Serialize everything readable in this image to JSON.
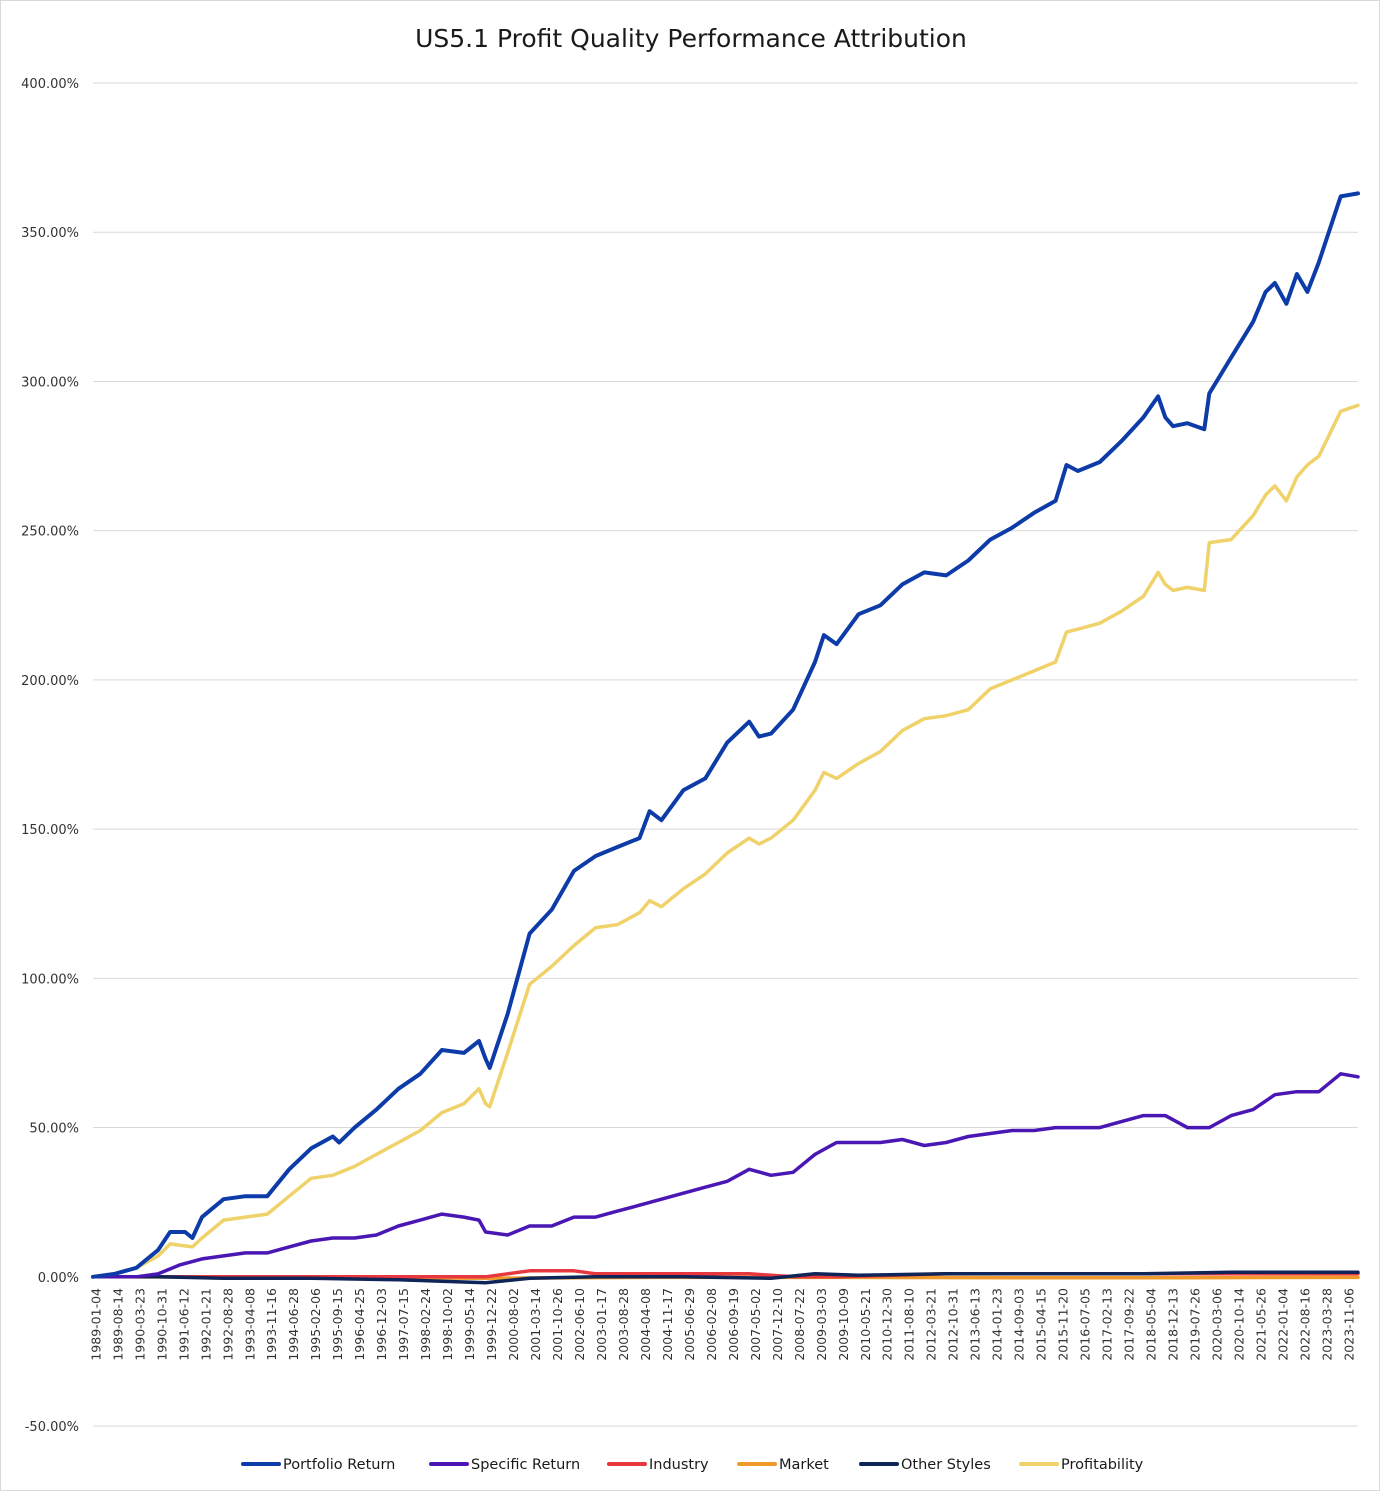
{
  "chart_data": {
    "type": "line",
    "title": "US5.1 Profit Quality Performance Attribution",
    "xlabel": "",
    "ylabel": "",
    "ylim": [
      -0.5,
      4.0
    ],
    "y_ticks": [
      -0.5,
      0,
      0.5,
      1.0,
      1.5,
      2.0,
      2.5,
      3.0,
      3.5,
      4.0
    ],
    "y_tick_labels": [
      "-50.00%",
      "0.00%",
      "50.00%",
      "100.00%",
      "150.00%",
      "200.00%",
      "250.00%",
      "300.00%",
      "350.00%",
      "400.00%"
    ],
    "y_format": "percent",
    "grid": "horizontal",
    "legend_position": "bottom",
    "x_range": [
      "1989-01-04",
      "2024-04-30"
    ],
    "x_tick_labels": [
      "1989-01-04",
      "1989-08-14",
      "1990-03-23",
      "1990-10-31",
      "1991-06-12",
      "1992-01-21",
      "1992-08-28",
      "1993-04-08",
      "1993-11-16",
      "1994-06-28",
      "1995-02-06",
      "1995-09-15",
      "1996-04-25",
      "1996-12-03",
      "1997-07-15",
      "1998-02-24",
      "1998-10-02",
      "1999-05-14",
      "1999-12-22",
      "2000-08-02",
      "2001-03-14",
      "2001-10-26",
      "2002-06-10",
      "2003-01-17",
      "2003-08-28",
      "2004-04-08",
      "2004-11-17",
      "2005-06-29",
      "2006-02-08",
      "2006-09-19",
      "2007-05-02",
      "2007-12-10",
      "2008-07-22",
      "2009-03-03",
      "2009-10-09",
      "2010-05-21",
      "2010-12-30",
      "2011-08-10",
      "2012-03-21",
      "2012-10-31",
      "2013-06-13",
      "2014-01-23",
      "2014-09-03",
      "2015-04-15",
      "2015-11-20",
      "2016-07-05",
      "2017-02-13",
      "2017-09-22",
      "2018-05-04",
      "2018-12-13",
      "2019-07-26",
      "2020-03-06",
      "2020-10-14",
      "2021-05-26",
      "2022-01-04",
      "2022-08-16",
      "2023-03-28",
      "2023-11-06"
    ],
    "series": [
      {
        "name": "Portfolio Return",
        "color": "#0d3ca8",
        "points": [
          [
            "1989-01-04",
            0
          ],
          [
            "1989-08-14",
            0.01
          ],
          [
            "1990-03-23",
            0.03
          ],
          [
            "1990-10-31",
            0.09
          ],
          [
            "1991-03-01",
            0.15
          ],
          [
            "1991-08-01",
            0.15
          ],
          [
            "1991-10-15",
            0.13
          ],
          [
            "1992-01-21",
            0.2
          ],
          [
            "1992-08-28",
            0.26
          ],
          [
            "1993-04-08",
            0.27
          ],
          [
            "1993-11-16",
            0.27
          ],
          [
            "1994-06-28",
            0.36
          ],
          [
            "1995-02-06",
            0.43
          ],
          [
            "1995-09-15",
            0.47
          ],
          [
            "1995-11-20",
            0.45
          ],
          [
            "1996-04-25",
            0.5
          ],
          [
            "1996-12-03",
            0.56
          ],
          [
            "1997-07-15",
            0.63
          ],
          [
            "1998-02-24",
            0.68
          ],
          [
            "1998-10-02",
            0.76
          ],
          [
            "1999-05-14",
            0.75
          ],
          [
            "1999-10-15",
            0.79
          ],
          [
            "1999-12-22",
            0.73
          ],
          [
            "2000-02-01",
            0.7
          ],
          [
            "2000-08-02",
            0.88
          ],
          [
            "2001-03-14",
            1.15
          ],
          [
            "2001-10-26",
            1.23
          ],
          [
            "2002-06-10",
            1.36
          ],
          [
            "2003-01-17",
            1.41
          ],
          [
            "2003-08-28",
            1.44
          ],
          [
            "2004-04-08",
            1.47
          ],
          [
            "2004-07-20",
            1.56
          ],
          [
            "2004-11-17",
            1.53
          ],
          [
            "2005-06-29",
            1.63
          ],
          [
            "2006-02-08",
            1.67
          ],
          [
            "2006-09-19",
            1.79
          ],
          [
            "2007-05-02",
            1.86
          ],
          [
            "2007-08-10",
            1.81
          ],
          [
            "2007-12-10",
            1.82
          ],
          [
            "2008-07-22",
            1.9
          ],
          [
            "2009-03-03",
            2.06
          ],
          [
            "2009-06-01",
            2.15
          ],
          [
            "2009-10-09",
            2.12
          ],
          [
            "2010-05-21",
            2.22
          ],
          [
            "2010-12-30",
            2.25
          ],
          [
            "2011-08-10",
            2.32
          ],
          [
            "2012-03-21",
            2.36
          ],
          [
            "2012-10-31",
            2.35
          ],
          [
            "2013-06-13",
            2.4
          ],
          [
            "2014-01-23",
            2.47
          ],
          [
            "2014-09-03",
            2.51
          ],
          [
            "2015-04-15",
            2.56
          ],
          [
            "2015-11-20",
            2.6
          ],
          [
            "2016-03-10",
            2.72
          ],
          [
            "2016-07-05",
            2.7
          ],
          [
            "2017-02-13",
            2.73
          ],
          [
            "2017-09-22",
            2.8
          ],
          [
            "2018-05-04",
            2.88
          ],
          [
            "2018-10-01",
            2.95
          ],
          [
            "2018-12-13",
            2.88
          ],
          [
            "2019-03-01",
            2.85
          ],
          [
            "2019-07-26",
            2.86
          ],
          [
            "2020-01-15",
            2.84
          ],
          [
            "2020-03-06",
            2.96
          ],
          [
            "2020-10-14",
            3.08
          ],
          [
            "2021-05-26",
            3.2
          ],
          [
            "2021-10-01",
            3.3
          ],
          [
            "2022-01-04",
            3.33
          ],
          [
            "2022-05-01",
            3.26
          ],
          [
            "2022-08-16",
            3.36
          ],
          [
            "2022-12-01",
            3.3
          ],
          [
            "2023-03-28",
            3.4
          ],
          [
            "2023-11-06",
            3.62
          ],
          [
            "2024-04-30",
            3.63
          ]
        ]
      },
      {
        "name": "Specific Return",
        "color": "#4a17b5",
        "points": [
          [
            "1989-01-04",
            0
          ],
          [
            "1990-03-23",
            0
          ],
          [
            "1990-10-31",
            0.01
          ],
          [
            "1991-06-12",
            0.04
          ],
          [
            "1992-01-21",
            0.06
          ],
          [
            "1992-08-28",
            0.07
          ],
          [
            "1993-04-08",
            0.08
          ],
          [
            "1993-11-16",
            0.08
          ],
          [
            "1994-06-28",
            0.1
          ],
          [
            "1995-02-06",
            0.12
          ],
          [
            "1995-09-15",
            0.13
          ],
          [
            "1996-04-25",
            0.13
          ],
          [
            "1996-12-03",
            0.14
          ],
          [
            "1997-07-15",
            0.17
          ],
          [
            "1998-02-24",
            0.19
          ],
          [
            "1998-10-02",
            0.21
          ],
          [
            "1999-05-14",
            0.2
          ],
          [
            "1999-10-15",
            0.19
          ],
          [
            "1999-12-22",
            0.15
          ],
          [
            "2000-08-02",
            0.14
          ],
          [
            "2001-03-14",
            0.17
          ],
          [
            "2001-10-26",
            0.17
          ],
          [
            "2002-06-10",
            0.2
          ],
          [
            "2003-01-17",
            0.2
          ],
          [
            "2003-08-28",
            0.22
          ],
          [
            "2004-04-08",
            0.24
          ],
          [
            "2004-11-17",
            0.26
          ],
          [
            "2005-06-29",
            0.28
          ],
          [
            "2006-02-08",
            0.3
          ],
          [
            "2006-09-19",
            0.32
          ],
          [
            "2007-05-02",
            0.36
          ],
          [
            "2007-12-10",
            0.34
          ],
          [
            "2008-07-22",
            0.35
          ],
          [
            "2009-03-03",
            0.41
          ],
          [
            "2009-10-09",
            0.45
          ],
          [
            "2010-05-21",
            0.45
          ],
          [
            "2010-12-30",
            0.45
          ],
          [
            "2011-08-10",
            0.46
          ],
          [
            "2012-03-21",
            0.44
          ],
          [
            "2012-10-31",
            0.45
          ],
          [
            "2013-06-13",
            0.47
          ],
          [
            "2014-01-23",
            0.48
          ],
          [
            "2014-09-03",
            0.49
          ],
          [
            "2015-04-15",
            0.49
          ],
          [
            "2015-11-20",
            0.5
          ],
          [
            "2016-07-05",
            0.5
          ],
          [
            "2017-02-13",
            0.5
          ],
          [
            "2017-09-22",
            0.52
          ],
          [
            "2018-05-04",
            0.54
          ],
          [
            "2018-12-13",
            0.54
          ],
          [
            "2019-07-26",
            0.5
          ],
          [
            "2020-03-06",
            0.5
          ],
          [
            "2020-10-14",
            0.54
          ],
          [
            "2021-05-26",
            0.56
          ],
          [
            "2022-01-04",
            0.61
          ],
          [
            "2022-08-16",
            0.62
          ],
          [
            "2023-03-28",
            0.62
          ],
          [
            "2023-11-06",
            0.68
          ],
          [
            "2024-04-30",
            0.67
          ]
        ]
      },
      {
        "name": "Industry",
        "color": "#e8383f",
        "points": [
          [
            "1989-01-04",
            0
          ],
          [
            "1992-08-28",
            0
          ],
          [
            "1996-04-25",
            0
          ],
          [
            "1998-10-02",
            0
          ],
          [
            "1999-12-22",
            0
          ],
          [
            "2000-08-02",
            0.01
          ],
          [
            "2001-03-14",
            0.02
          ],
          [
            "2001-10-26",
            0.02
          ],
          [
            "2002-06-10",
            0.02
          ],
          [
            "2003-01-17",
            0.01
          ],
          [
            "2004-11-17",
            0.01
          ],
          [
            "2007-05-02",
            0.01
          ],
          [
            "2008-07-22",
            0
          ],
          [
            "2009-10-09",
            0
          ],
          [
            "2012-10-31",
            0.01
          ],
          [
            "2016-07-05",
            0.01
          ],
          [
            "2018-05-04",
            0.01
          ],
          [
            "2020-03-06",
            0.01
          ],
          [
            "2022-01-04",
            0.01
          ],
          [
            "2024-04-30",
            0.01
          ]
        ]
      },
      {
        "name": "Market",
        "color": "#f09a2b",
        "points": [
          [
            "1989-01-04",
            0
          ],
          [
            "1995-02-06",
            -0.002
          ],
          [
            "1999-12-22",
            -0.005
          ],
          [
            "2004-11-17",
            -0.002
          ],
          [
            "2009-10-09",
            -0.002
          ],
          [
            "2014-09-03",
            -0.003
          ],
          [
            "2019-07-26",
            -0.003
          ],
          [
            "2024-04-30",
            -0.002
          ]
        ]
      },
      {
        "name": "Other Styles",
        "color": "#0f2557",
        "points": [
          [
            "1989-01-04",
            0
          ],
          [
            "1990-10-31",
            0
          ],
          [
            "1992-08-28",
            -0.005
          ],
          [
            "1995-02-06",
            -0.005
          ],
          [
            "1997-07-15",
            -0.01
          ],
          [
            "1999-12-22",
            -0.02
          ],
          [
            "2001-03-14",
            -0.005
          ],
          [
            "2003-01-17",
            0
          ],
          [
            "2005-06-29",
            0
          ],
          [
            "2007-12-10",
            -0.005
          ],
          [
            "2009-03-03",
            0.01
          ],
          [
            "2010-05-21",
            0.005
          ],
          [
            "2012-10-31",
            0.01
          ],
          [
            "2015-11-20",
            0.01
          ],
          [
            "2018-05-04",
            0.01
          ],
          [
            "2020-10-14",
            0.015
          ],
          [
            "2022-08-16",
            0.015
          ],
          [
            "2024-04-30",
            0.015
          ]
        ]
      },
      {
        "name": "Profitability",
        "color": "#f0d26a",
        "points": [
          [
            "1989-01-04",
            0
          ],
          [
            "1989-08-14",
            0.01
          ],
          [
            "1990-03-23",
            0.03
          ],
          [
            "1990-10-31",
            0.07
          ],
          [
            "1991-03-01",
            0.11
          ],
          [
            "1991-10-15",
            0.1
          ],
          [
            "1992-01-21",
            0.13
          ],
          [
            "1992-08-28",
            0.19
          ],
          [
            "1993-04-08",
            0.2
          ],
          [
            "1993-11-16",
            0.21
          ],
          [
            "1994-06-28",
            0.27
          ],
          [
            "1995-02-06",
            0.33
          ],
          [
            "1995-09-15",
            0.34
          ],
          [
            "1996-04-25",
            0.37
          ],
          [
            "1996-12-03",
            0.41
          ],
          [
            "1997-07-15",
            0.45
          ],
          [
            "1998-02-24",
            0.49
          ],
          [
            "1998-10-02",
            0.55
          ],
          [
            "1999-05-14",
            0.58
          ],
          [
            "1999-10-15",
            0.63
          ],
          [
            "1999-12-22",
            0.58
          ],
          [
            "2000-02-01",
            0.57
          ],
          [
            "2000-08-02",
            0.75
          ],
          [
            "2001-03-14",
            0.98
          ],
          [
            "2001-10-26",
            1.04
          ],
          [
            "2002-06-10",
            1.11
          ],
          [
            "2003-01-17",
            1.17
          ],
          [
            "2003-08-28",
            1.18
          ],
          [
            "2004-04-08",
            1.22
          ],
          [
            "2004-07-20",
            1.26
          ],
          [
            "2004-11-17",
            1.24
          ],
          [
            "2005-06-29",
            1.3
          ],
          [
            "2006-02-08",
            1.35
          ],
          [
            "2006-09-19",
            1.42
          ],
          [
            "2007-05-02",
            1.47
          ],
          [
            "2007-08-10",
            1.45
          ],
          [
            "2007-12-10",
            1.47
          ],
          [
            "2008-07-22",
            1.53
          ],
          [
            "2009-03-03",
            1.63
          ],
          [
            "2009-06-01",
            1.69
          ],
          [
            "2009-10-09",
            1.67
          ],
          [
            "2010-05-21",
            1.72
          ],
          [
            "2010-12-30",
            1.76
          ],
          [
            "2011-08-10",
            1.83
          ],
          [
            "2012-03-21",
            1.87
          ],
          [
            "2012-10-31",
            1.88
          ],
          [
            "2013-06-13",
            1.9
          ],
          [
            "2014-01-23",
            1.97
          ],
          [
            "2014-09-03",
            2.0
          ],
          [
            "2015-04-15",
            2.03
          ],
          [
            "2015-11-20",
            2.06
          ],
          [
            "2016-03-10",
            2.16
          ],
          [
            "2016-07-05",
            2.17
          ],
          [
            "2017-02-13",
            2.19
          ],
          [
            "2017-09-22",
            2.23
          ],
          [
            "2018-05-04",
            2.28
          ],
          [
            "2018-10-01",
            2.36
          ],
          [
            "2018-12-13",
            2.32
          ],
          [
            "2019-03-01",
            2.3
          ],
          [
            "2019-07-26",
            2.31
          ],
          [
            "2020-01-15",
            2.3
          ],
          [
            "2020-03-06",
            2.46
          ],
          [
            "2020-10-14",
            2.47
          ],
          [
            "2021-05-26",
            2.55
          ],
          [
            "2021-10-01",
            2.62
          ],
          [
            "2022-01-04",
            2.65
          ],
          [
            "2022-05-01",
            2.6
          ],
          [
            "2022-08-16",
            2.68
          ],
          [
            "2022-12-01",
            2.72
          ],
          [
            "2023-03-28",
            2.75
          ],
          [
            "2023-11-06",
            2.9
          ],
          [
            "2024-04-30",
            2.92
          ]
        ]
      }
    ]
  }
}
